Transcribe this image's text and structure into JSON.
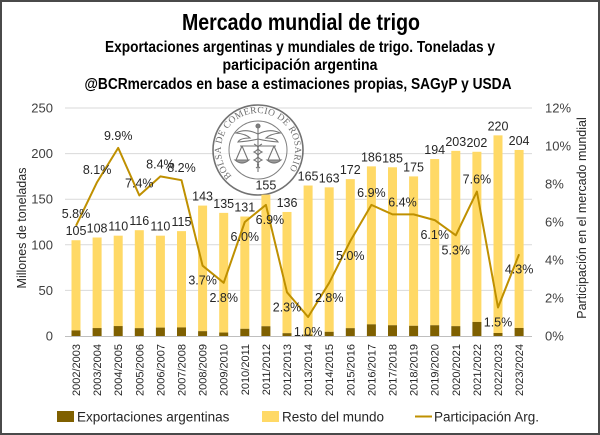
{
  "chart_data": {
    "type": "bar",
    "stacked": true,
    "title": "Mercado mundial de trigo",
    "subtitle": [
      "Exportaciones argentinas y mundiales de trigo. Toneladas y",
      "participación argentina",
      "@BCRmercados en base a estimaciones propias, SAGyP y USDA"
    ],
    "categories": [
      "2002/2003",
      "2003/2004",
      "2004/2005",
      "2005/2006",
      "2006/2007",
      "2007/2008",
      "2008/2009",
      "2009/2010",
      "2010/2011",
      "2011/2012",
      "2012/2013",
      "2013/2014",
      "2014/2015",
      "2015/2016",
      "2016/2017",
      "2017/2018",
      "2018/2019",
      "2019/2020",
      "2020/2021",
      "2021/2022",
      "2022/2023",
      "2023/2024"
    ],
    "totals": [
      105,
      108,
      110,
      116,
      110,
      115,
      143,
      135,
      131,
      155,
      136,
      165,
      163,
      172,
      186,
      185,
      175,
      194,
      203,
      202,
      220,
      204
    ],
    "series": [
      {
        "name": "Exportaciones argentinas",
        "type": "bar",
        "axis": "left",
        "color": "#7f6000",
        "values": [
          6.1,
          8.7,
          10.9,
          8.6,
          9.2,
          9.4,
          5.3,
          3.8,
          7.9,
          10.7,
          3.1,
          1.7,
          4.6,
          8.6,
          12.8,
          11.8,
          11.2,
          11.8,
          10.8,
          15.4,
          3.3,
          8.8
        ]
      },
      {
        "name": "Resto del mundo",
        "type": "bar",
        "axis": "left",
        "color": "#ffd966",
        "values": [
          98.9,
          99.3,
          99.1,
          107.4,
          100.8,
          105.6,
          137.7,
          131.2,
          123.1,
          144.3,
          132.9,
          163.3,
          158.4,
          163.4,
          173.2,
          173.2,
          163.8,
          182.2,
          192.2,
          186.6,
          216.7,
          195.2
        ]
      },
      {
        "name": "Participación Arg.",
        "type": "line",
        "axis": "right",
        "unit": "%",
        "color": "#bf9000",
        "values": [
          5.8,
          8.1,
          9.9,
          7.4,
          8.4,
          8.2,
          3.7,
          2.8,
          6.0,
          6.9,
          2.3,
          1.0,
          2.8,
          5.0,
          6.9,
          6.4,
          6.4,
          6.1,
          5.3,
          7.6,
          1.5,
          4.3
        ],
        "labels": [
          "5.8%",
          "8.1%",
          "9.9%",
          "7.4%",
          "8.4%",
          "8.2%",
          "3.7%",
          "2.8%",
          "6.0%",
          "6.9%",
          "2.3%",
          "1.0%",
          "2.8%",
          "5.0%",
          "6.9%",
          "6.4%",
          null,
          "6.1%",
          "5.3%",
          "7.6%",
          "1.5%",
          "4.3%"
        ]
      }
    ],
    "ylabel": "Millones de toneladas",
    "y2label": "Participación en el mercado mundial",
    "ylim": [
      0,
      250
    ],
    "yticks": [
      0,
      50,
      100,
      150,
      200,
      250
    ],
    "ytick_labels": [
      "0",
      "50",
      "100",
      "150",
      "200",
      "250"
    ],
    "y2lim": [
      0,
      12
    ],
    "y2ticks": [
      0,
      2,
      4,
      6,
      8,
      10,
      12
    ],
    "y2tick_labels": [
      "0%",
      "2%",
      "4%",
      "6%",
      "8%",
      "10%",
      "12%"
    ],
    "grid": true,
    "legend": "bottom"
  },
  "logo": {
    "text": "BOLSA DE COMERCIO DE ROSARIO"
  }
}
